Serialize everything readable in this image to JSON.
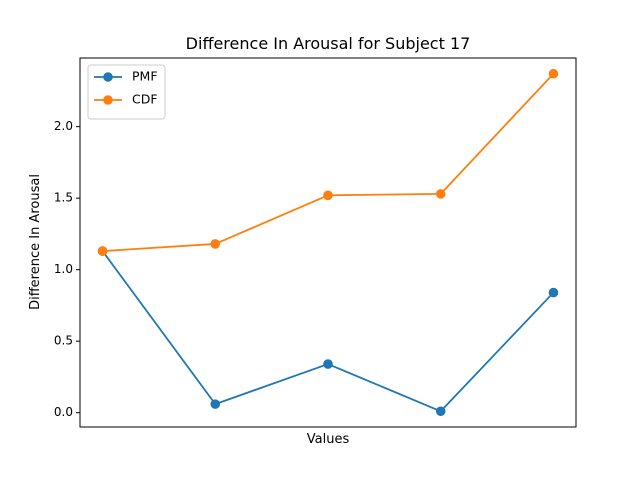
{
  "chart_data": {
    "type": "line",
    "title": "Difference In Arousal for Subject 17",
    "xlabel": "Values",
    "ylabel": "Difference In Arousal",
    "x": [
      1,
      2,
      3,
      4,
      5
    ],
    "x_ticks_shown": false,
    "ylim": [
      -0.1,
      2.48
    ],
    "yticks": [
      "0.0",
      "0.5",
      "1.0",
      "1.5",
      "2.0"
    ],
    "legend": "top-left",
    "grid": false,
    "series": [
      {
        "name": "PMF",
        "color": "#1f77b4",
        "marker": "circle",
        "values": [
          1.13,
          0.06,
          0.34,
          0.01,
          0.84
        ]
      },
      {
        "name": "CDF",
        "color": "#ff7f0e",
        "marker": "circle",
        "values": [
          1.13,
          1.18,
          1.52,
          1.53,
          2.37
        ]
      }
    ]
  }
}
